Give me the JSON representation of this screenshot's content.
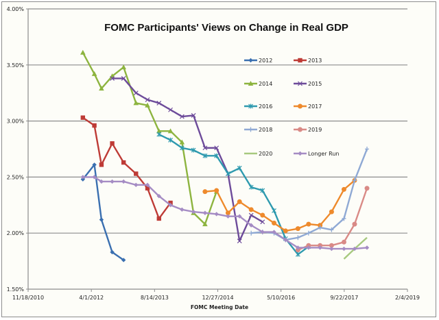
{
  "chart_data": {
    "type": "line",
    "title": "FOMC Participants' Views on Change in Real GDP",
    "xlabel": "FOMC Meeting Date",
    "ylabel": "",
    "ylim": [
      1.5,
      4.0
    ],
    "xlim": [
      "11/18/2010",
      "2/4/2019"
    ],
    "grid": true,
    "legend_position": "top-right",
    "y_ticks": [
      "4.00%",
      "3.50%",
      "3.00%",
      "2.50%",
      "2.00%",
      "1.50%"
    ],
    "y_tick_values": [
      4.0,
      3.5,
      3.0,
      2.5,
      2.0,
      1.5
    ],
    "x_ticks": [
      "11/18/2010",
      "4/1/2012",
      "8/14/2013",
      "12/27/2014",
      "5/10/2016",
      "9/22/2017",
      "2/4/2019"
    ],
    "x_tick_dates": [
      "2010-11-18",
      "2012-04-01",
      "2013-08-14",
      "2014-12-27",
      "2016-05-10",
      "2017-09-22",
      "2019-02-04"
    ],
    "series": [
      {
        "name": "2012",
        "color": "#3a6fb0",
        "marker": "diamond",
        "x": [
          "2012-01-25",
          "2012-04-25",
          "2012-06-20",
          "2012-09-13",
          "2012-12-12"
        ],
        "values": [
          2.48,
          2.61,
          2.12,
          1.83,
          1.76
        ]
      },
      {
        "name": "2013",
        "color": "#be3b36",
        "marker": "square",
        "x": [
          "2012-01-25",
          "2012-04-25",
          "2012-06-20",
          "2012-09-13",
          "2012-12-12",
          "2013-03-20",
          "2013-06-19",
          "2013-09-18",
          "2013-12-18"
        ],
        "values": [
          3.03,
          2.96,
          2.61,
          2.8,
          2.63,
          2.53,
          2.4,
          2.13,
          2.27
        ]
      },
      {
        "name": "2014",
        "color": "#8db43f",
        "marker": "triangle",
        "x": [
          "2012-01-25",
          "2012-04-25",
          "2012-06-20",
          "2012-09-13",
          "2012-12-12",
          "2013-03-20",
          "2013-06-19",
          "2013-09-18",
          "2013-12-18",
          "2014-03-19",
          "2014-06-18",
          "2014-09-17",
          "2014-12-17"
        ],
        "values": [
          3.61,
          3.42,
          3.29,
          3.4,
          3.48,
          3.16,
          3.14,
          2.91,
          2.91,
          2.81,
          2.18,
          2.08,
          2.37
        ]
      },
      {
        "name": "2015",
        "color": "#6d4b9a",
        "marker": "x",
        "x": [
          "2012-09-13",
          "2012-12-12",
          "2013-03-20",
          "2013-06-19",
          "2013-09-18",
          "2013-12-18",
          "2014-03-19",
          "2014-06-18",
          "2014-09-17",
          "2014-12-17",
          "2015-03-18",
          "2015-06-17",
          "2015-09-17",
          "2015-12-16"
        ],
        "values": [
          3.38,
          3.38,
          3.25,
          3.19,
          3.16,
          3.1,
          3.04,
          3.05,
          2.76,
          2.76,
          2.53,
          1.93,
          2.16,
          2.1
        ]
      },
      {
        "name": "2016",
        "color": "#2e9aaf",
        "marker": "asterisk",
        "x": [
          "2013-09-18",
          "2013-12-18",
          "2014-03-19",
          "2014-06-18",
          "2014-09-17",
          "2014-12-17",
          "2015-03-18",
          "2015-06-17",
          "2015-09-17",
          "2015-12-16",
          "2016-03-16",
          "2016-06-15",
          "2016-09-21",
          "2016-12-14"
        ],
        "values": [
          2.88,
          2.83,
          2.76,
          2.74,
          2.69,
          2.69,
          2.53,
          2.58,
          2.41,
          2.38,
          2.2,
          1.95,
          1.81,
          1.88
        ]
      },
      {
        "name": "2017",
        "color": "#ee8a2c",
        "marker": "circle",
        "x": [
          "2014-09-17",
          "2014-12-17",
          "2015-03-18",
          "2015-06-17",
          "2015-09-17",
          "2015-12-16",
          "2016-03-16",
          "2016-06-15",
          "2016-09-21",
          "2016-12-14",
          "2017-03-15",
          "2017-06-14",
          "2017-09-20",
          "2017-12-13"
        ],
        "values": [
          2.37,
          2.38,
          2.18,
          2.28,
          2.21,
          2.16,
          2.09,
          2.02,
          2.04,
          2.08,
          2.07,
          2.19,
          2.39,
          2.47
        ]
      },
      {
        "name": "2018",
        "color": "#8fa9d4",
        "marker": "plus",
        "x": [
          "2015-09-17",
          "2015-12-16",
          "2016-03-16",
          "2016-06-15",
          "2016-09-21",
          "2016-12-14",
          "2017-03-15",
          "2017-06-14",
          "2017-09-20",
          "2017-12-13",
          "2018-03-21"
        ],
        "values": [
          2.0,
          2.01,
          2.0,
          1.94,
          1.96,
          2.0,
          2.05,
          2.03,
          2.13,
          2.47,
          2.75
        ]
      },
      {
        "name": "2019",
        "color": "#d98a86",
        "marker": "circle",
        "x": [
          "2016-09-21",
          "2016-12-14",
          "2017-03-15",
          "2017-06-14",
          "2017-09-20",
          "2017-12-13",
          "2018-03-21"
        ],
        "values": [
          1.85,
          1.89,
          1.89,
          1.89,
          1.92,
          2.08,
          2.4
        ]
      },
      {
        "name": "2020",
        "color": "#a7c97f",
        "marker": "none",
        "x": [
          "2017-09-20",
          "2017-12-13",
          "2018-03-21"
        ],
        "values": [
          1.77,
          1.86,
          1.96
        ]
      },
      {
        "name": "Longer Run",
        "color": "#a58cc4",
        "marker": "diamond",
        "x": [
          "2012-01-25",
          "2012-04-25",
          "2012-06-20",
          "2012-09-13",
          "2012-12-12",
          "2013-03-20",
          "2013-06-19",
          "2013-09-18",
          "2013-12-18",
          "2014-03-19",
          "2014-06-18",
          "2014-09-17",
          "2014-12-17",
          "2015-03-18",
          "2015-06-17",
          "2015-09-17",
          "2015-12-16",
          "2016-03-16",
          "2016-06-15",
          "2016-09-21",
          "2016-12-14",
          "2017-03-15",
          "2017-06-14",
          "2017-09-20",
          "2017-12-13",
          "2018-03-21"
        ],
        "values": [
          2.5,
          2.5,
          2.46,
          2.46,
          2.46,
          2.43,
          2.43,
          2.33,
          2.25,
          2.21,
          2.19,
          2.18,
          2.17,
          2.15,
          2.15,
          2.07,
          2.01,
          2.01,
          1.94,
          1.87,
          1.87,
          1.87,
          1.86,
          1.86,
          1.86,
          1.87
        ]
      }
    ]
  }
}
